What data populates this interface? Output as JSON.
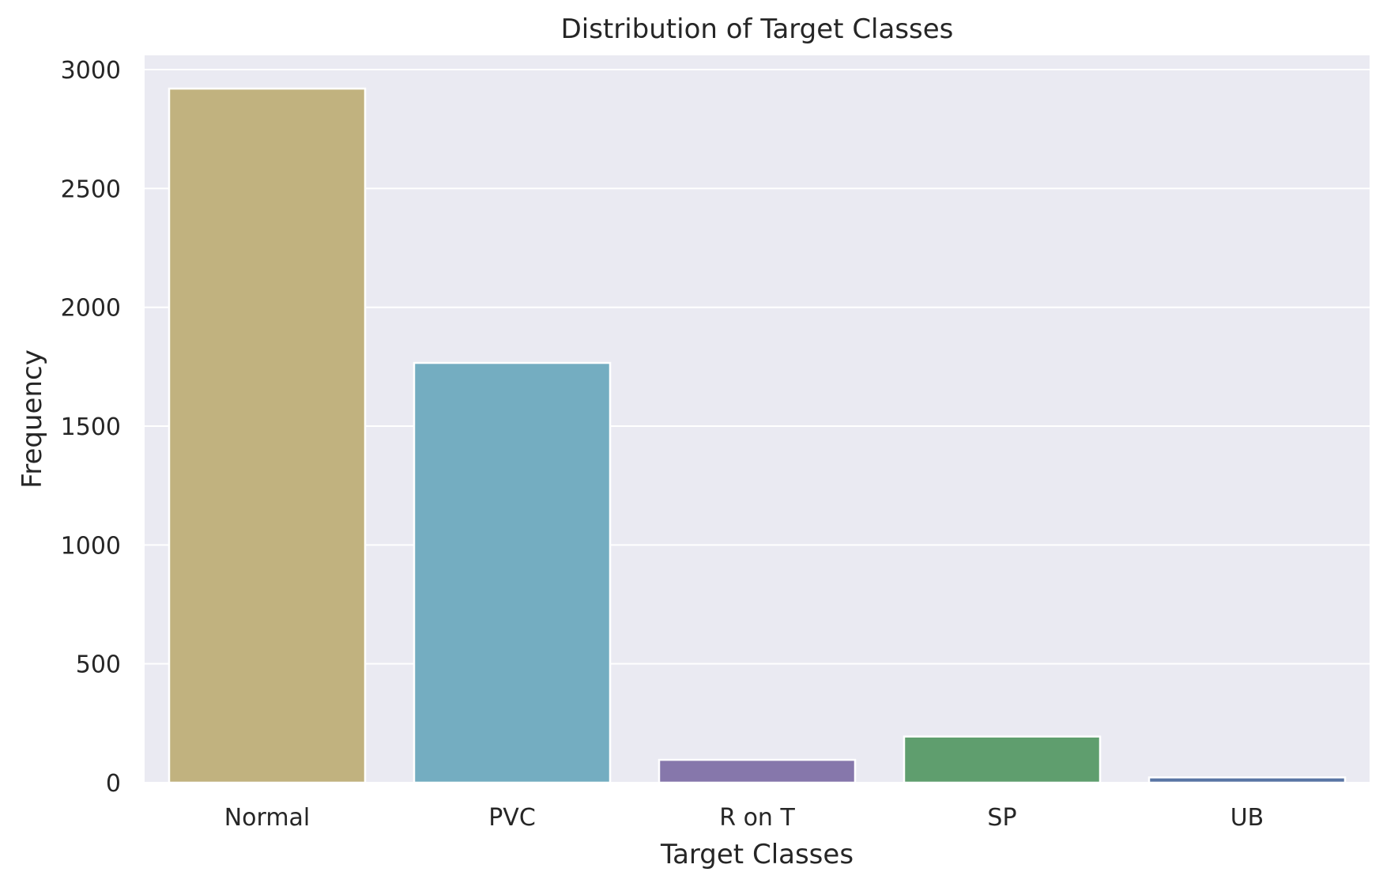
{
  "chart_data": {
    "type": "bar",
    "title": "Distribution of Target Classes",
    "xlabel": "Target Classes",
    "ylabel": "Frequency",
    "categories": [
      "Normal",
      "PVC",
      "R on T",
      "SP",
      "UB"
    ],
    "values": [
      2920,
      1766,
      96,
      194,
      22
    ],
    "colors": [
      "#c1b27f",
      "#74adc1",
      "#8677ab",
      "#5f9e6e",
      "#5975a4"
    ],
    "ylim": [
      0,
      3060
    ],
    "yticks": [
      0,
      500,
      1000,
      1500,
      2000,
      2500,
      3000
    ],
    "ytick_labels": [
      "0",
      "500",
      "1000",
      "1500",
      "2000",
      "2500",
      "3000"
    ],
    "grid": true,
    "background": "#eaeaf2",
    "grid_color": "#ffffff"
  }
}
